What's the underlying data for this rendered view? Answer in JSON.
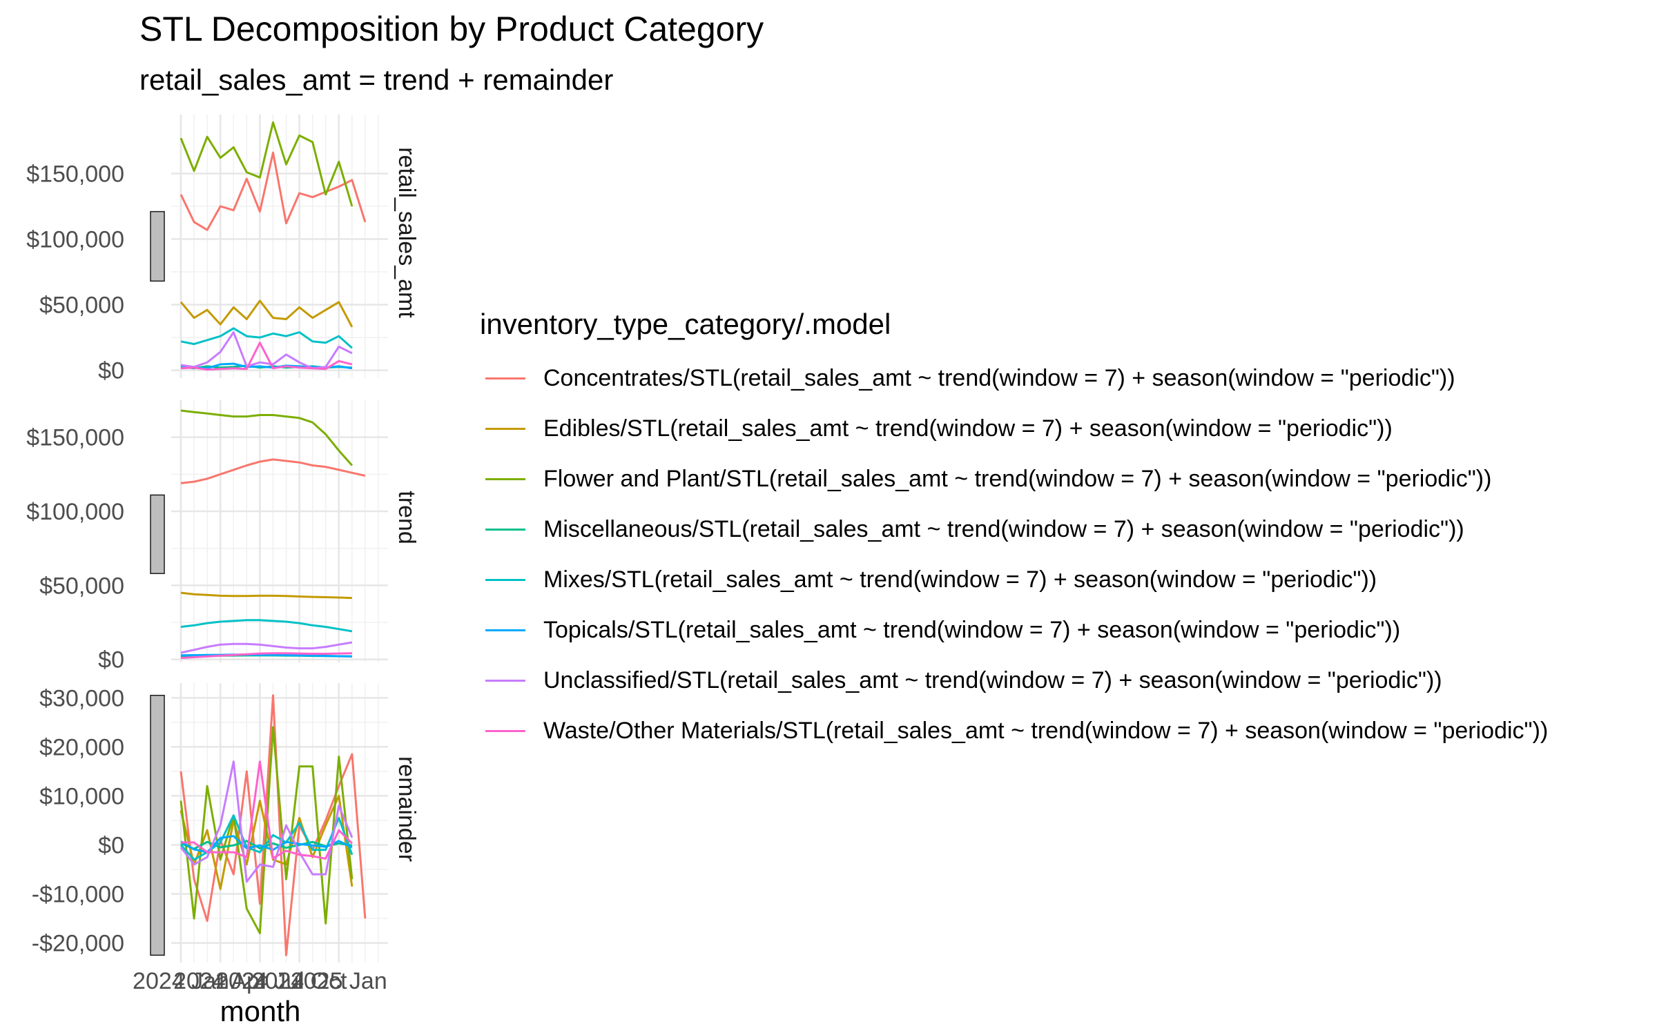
{
  "chart_data": {
    "type": "line",
    "title": "STL Decomposition by Product Category",
    "subtitle": "retail_sales_amt = trend + remainder",
    "xlabel": "month",
    "x": [
      "2024 Jan",
      "2024 Feb",
      "2024 Mar",
      "2024 Apr",
      "2024 May",
      "2024 Jun",
      "2024 Jul",
      "2024 Aug",
      "2024 Sep",
      "2024 Oct",
      "2024 Nov",
      "2024 Dec",
      "2025 Jan",
      "2025 Feb",
      "2025 Mar",
      "2025 Apr"
    ],
    "x_tick_labels": [
      "2024 Jan",
      "2024 Apr",
      "2024 Jul",
      "2024 Oct",
      "2025 Jan"
    ],
    "x_tick_index": [
      0,
      3,
      6,
      9,
      12
    ],
    "legend_title": "inventory_type_category/.model",
    "legend_position": "right",
    "grid": true,
    "facets": [
      {
        "strip": "retail_sales_amt",
        "ylim": [
          -6000,
          195000
        ],
        "y_ticks": [
          0,
          50000,
          100000,
          150000
        ],
        "y_tick_labels": [
          "$0",
          "$50,000",
          "$100,000",
          "$150,000"
        ],
        "scale_bar": [
          68000,
          121000
        ]
      },
      {
        "strip": "trend",
        "ylim": [
          -2000,
          175000
        ],
        "y_ticks": [
          0,
          50000,
          100000,
          150000
        ],
        "y_tick_labels": [
          "$0",
          "$50,000",
          "$100,000",
          "$150,000"
        ],
        "scale_bar": [
          58000,
          111000
        ]
      },
      {
        "strip": "remainder",
        "ylim": [
          -24000,
          33000
        ],
        "y_ticks": [
          -20000,
          -10000,
          0,
          10000,
          20000,
          30000
        ],
        "y_tick_labels": [
          "-$20,000",
          "-$10,000",
          "$0",
          "$10,000",
          "$20,000",
          "$30,000"
        ],
        "scale_bar": [
          -22500,
          30500
        ]
      }
    ],
    "series": [
      {
        "name": "Concentrates/STL(retail_sales_amt ~ trend(window = 7) + season(window = \"periodic\"))",
        "color": "#F8766D",
        "values": {
          "retail_sales_amt": [
            134000,
            113000,
            107000,
            125000,
            122000,
            146000,
            121000,
            166000,
            112000,
            135000,
            132000,
            136000,
            140000,
            145000,
            113000,
            null
          ],
          "trend": [
            119000,
            120000,
            122000,
            125000,
            128000,
            131000,
            133500,
            135000,
            134000,
            133000,
            131000,
            130000,
            128000,
            126000,
            124000,
            null
          ],
          "remainder": [
            15000,
            -7000,
            -15500,
            1000,
            -6000,
            15000,
            -12000,
            30500,
            -22500,
            4000,
            -1000,
            5000,
            12000,
            18500,
            -15000,
            null
          ]
        }
      },
      {
        "name": "Edibles/STL(retail_sales_amt ~ trend(window = 7) + season(window = \"periodic\"))",
        "color": "#C49A00",
        "values": {
          "retail_sales_amt": [
            52000,
            40000,
            46000,
            35000,
            48000,
            39000,
            53000,
            40000,
            39000,
            48000,
            40000,
            46000,
            52000,
            33000,
            null,
            null
          ],
          "trend": [
            45000,
            44000,
            43500,
            43000,
            42800,
            42800,
            43000,
            43000,
            42800,
            42500,
            42200,
            42000,
            41800,
            41500,
            null,
            null
          ],
          "remainder": [
            7000,
            -4000,
            3000,
            -9000,
            5000,
            -4000,
            9000,
            -3000,
            -4000,
            5500,
            -2500,
            4000,
            10000,
            -8500,
            null,
            null
          ]
        }
      },
      {
        "name": "Flower and Plant/STL(retail_sales_amt ~ trend(window = 7) + season(window = \"periodic\"))",
        "color": "#7CAE00",
        "values": {
          "retail_sales_amt": [
            177000,
            152000,
            178000,
            162000,
            170000,
            151000,
            147000,
            189000,
            157000,
            179000,
            174000,
            134000,
            159000,
            125000,
            null,
            null
          ],
          "trend": [
            168000,
            167000,
            166000,
            165000,
            164000,
            164000,
            165000,
            165000,
            164000,
            163000,
            160000,
            152000,
            141000,
            131000,
            null,
            null
          ],
          "remainder": [
            9000,
            -15000,
            12000,
            -3000,
            6000,
            -13000,
            -18000,
            24000,
            -7000,
            16000,
            16000,
            -16000,
            18000,
            -7000,
            null,
            null
          ]
        }
      },
      {
        "name": "Miscellaneous/STL(retail_sales_amt ~ trend(window = 7) + season(window = \"periodic\"))",
        "color": "#00C08B",
        "values": {
          "retail_sales_amt": [
            2500,
            1500,
            3000,
            2000,
            2500,
            3500,
            2000,
            3000,
            2000,
            2500,
            3000,
            2000,
            2500,
            2000,
            null,
            null
          ],
          "trend": [
            2200,
            2300,
            2400,
            2500,
            2600,
            2700,
            2700,
            2700,
            2600,
            2500,
            2400,
            2300,
            2200,
            2100,
            null,
            null
          ],
          "remainder": [
            300,
            -800,
            600,
            -500,
            -100,
            800,
            -700,
            300,
            -600,
            0,
            600,
            -300,
            300,
            -100,
            null,
            null
          ]
        }
      },
      {
        "name": "Mixes/STL(retail_sales_amt ~ trend(window = 7) + season(window = \"periodic\"))",
        "color": "#00C1C7",
        "values": {
          "retail_sales_amt": [
            22000,
            20000,
            23000,
            26000,
            32000,
            26000,
            25000,
            28000,
            26000,
            29000,
            22000,
            21000,
            26000,
            17000,
            null,
            null
          ],
          "trend": [
            22000,
            23000,
            24500,
            25500,
            26000,
            26500,
            26500,
            26000,
            25500,
            24500,
            23000,
            22000,
            20500,
            19000,
            null,
            null
          ],
          "remainder": [
            0,
            -3000,
            -1500,
            500,
            6000,
            -500,
            -1500,
            2000,
            500,
            4500,
            -1000,
            -1000,
            5500,
            -2000,
            null,
            null
          ]
        }
      },
      {
        "name": "Topicals/STL(retail_sales_amt ~ trend(window = 7) + season(window = \"periodic\"))",
        "color": "#00A9FF",
        "values": {
          "retail_sales_amt": [
            3500,
            2000,
            1500,
            4500,
            5000,
            2500,
            3000,
            2000,
            3500,
            3000,
            2500,
            2000,
            3000,
            1500,
            null,
            null
          ],
          "trend": [
            2800,
            2900,
            3000,
            3100,
            3200,
            3200,
            3100,
            3000,
            2900,
            2800,
            2600,
            2400,
            2200,
            2000,
            null,
            null
          ],
          "remainder": [
            700,
            -900,
            -1500,
            1400,
            1800,
            -700,
            -100,
            -1000,
            600,
            200,
            -100,
            -400,
            800,
            -500,
            null,
            null
          ]
        }
      },
      {
        "name": "Unclassified/STL(retail_sales_amt ~ trend(window = 7) + season(window = \"periodic\"))",
        "color": "#C77CFF",
        "values": {
          "retail_sales_amt": [
            4000,
            2500,
            6000,
            14000,
            29000,
            3000,
            6000,
            4500,
            12000,
            6000,
            1500,
            2500,
            18000,
            13000,
            null,
            null
          ],
          "trend": [
            4500,
            6500,
            8500,
            10000,
            10500,
            10500,
            10000,
            9000,
            8000,
            7500,
            7500,
            8500,
            10000,
            11500,
            null,
            null
          ],
          "remainder": [
            -500,
            -4000,
            -2500,
            4000,
            17000,
            -7500,
            -4000,
            -4500,
            4000,
            -1500,
            -6000,
            -6000,
            8000,
            1500,
            null,
            null
          ]
        }
      },
      {
        "name": "Waste/Other Materials/STL(retail_sales_amt ~ trend(window = 7) + season(window = \"periodic\"))",
        "color": "#FF61CC",
        "values": {
          "retail_sales_amt": [
            1500,
            2000,
            500,
            1000,
            1500,
            1000,
            21000,
            1500,
            3000,
            2000,
            1500,
            1000,
            7000,
            4500,
            null,
            null
          ],
          "trend": [
            1000,
            1500,
            2000,
            2500,
            3000,
            3500,
            4000,
            4200,
            4200,
            4000,
            3800,
            3800,
            4000,
            4200,
            null,
            null
          ],
          "remainder": [
            500,
            500,
            -1500,
            -1500,
            -1500,
            -2500,
            17000,
            -2700,
            -1200,
            -2000,
            -2300,
            -2800,
            3000,
            300,
            null,
            null
          ]
        }
      }
    ]
  }
}
